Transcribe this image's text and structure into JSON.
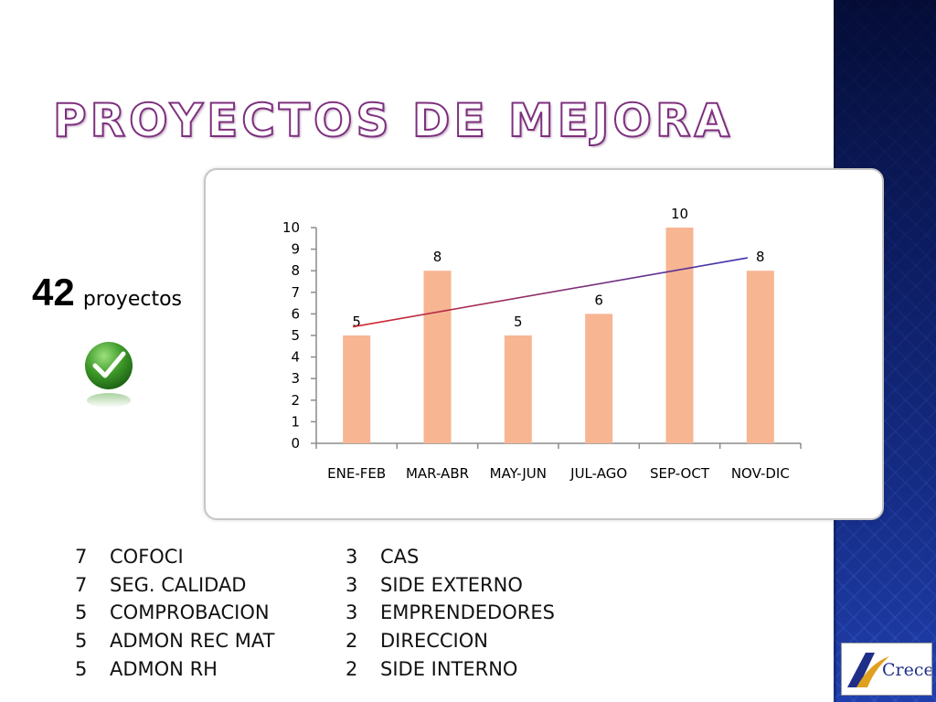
{
  "slide": {
    "title": "Proyectos de mejora",
    "count_number": "42",
    "count_unit": "proyectos",
    "logo_text": "Crece"
  },
  "chart_data": {
    "type": "bar",
    "title": "",
    "xlabel": "",
    "ylabel": "",
    "categories": [
      "ENE-FEB",
      "MAR-ABR",
      "MAY-JUN",
      "JUL-AGO",
      "SEP-OCT",
      "NOV-DIC"
    ],
    "values": [
      5,
      8,
      5,
      6,
      10,
      8
    ],
    "ylim": [
      0,
      10
    ],
    "yticks": [
      0,
      1,
      2,
      3,
      4,
      5,
      6,
      7,
      8,
      9,
      10
    ],
    "data_labels": true,
    "trendline": {
      "type": "linear",
      "start": 5.4,
      "end": 8.6
    },
    "grid": false,
    "legend": "none",
    "bar_color": "#f7b592",
    "trend_color_start": "#d62a2a",
    "trend_color_end": "#3a32b0"
  },
  "lists": {
    "left": [
      {
        "n": "7",
        "label": "COFOCI"
      },
      {
        "n": "7",
        "label": "SEG. CALIDAD"
      },
      {
        "n": "5",
        "label": "COMPROBACION"
      },
      {
        "n": "5",
        "label": "ADMON REC MAT"
      },
      {
        "n": "5",
        "label": "ADMON RH"
      }
    ],
    "right": [
      {
        "n": "3",
        "label": "CAS"
      },
      {
        "n": "3",
        "label": "SIDE EXTERNO"
      },
      {
        "n": "3",
        "label": "EMPRENDEDORES"
      },
      {
        "n": "2",
        "label": "DIRECCION"
      },
      {
        "n": "2",
        "label": "SIDE INTERNO"
      }
    ]
  },
  "icons": {
    "checkmark": "checkmark-icon",
    "logo": "crece-logo"
  },
  "colors": {
    "title_outline": "#7d2f7d",
    "check_green": "#3f9b2a",
    "sidebar": "#2b3f73"
  }
}
